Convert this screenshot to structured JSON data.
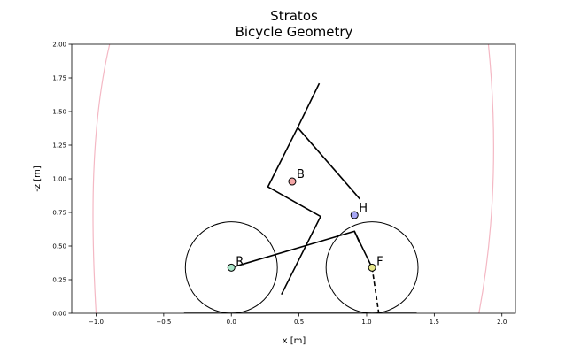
{
  "chart_data": {
    "type": "line",
    "title": "Stratos",
    "subtitle": "Bicycle Geometry",
    "xlabel": "x [m]",
    "ylabel": "-z [m]",
    "xlim": [
      -1.18,
      2.1
    ],
    "ylim": [
      0.0,
      2.0
    ],
    "grid": false,
    "x_ticks": [
      -1.0,
      -0.5,
      0.0,
      0.5,
      1.0,
      1.5,
      2.0
    ],
    "x_tick_labels": [
      "−1.0",
      "−0.5",
      "0.0",
      "0.5",
      "1.0",
      "1.5",
      "2.0"
    ],
    "y_ticks": [
      0.0,
      0.25,
      0.5,
      0.75,
      1.0,
      1.25,
      1.5,
      1.75,
      2.0
    ],
    "y_tick_labels": [
      "0.00",
      "0.25",
      "0.50",
      "0.75",
      "1.00",
      "1.25",
      "1.50",
      "1.75",
      "2.00"
    ],
    "ground_line": {
      "x": [
        -0.35,
        1.37
      ],
      "y": [
        0.0,
        0.0
      ]
    },
    "wheels": [
      {
        "label": "R",
        "center": [
          0.0,
          0.34
        ],
        "radius": 0.34,
        "marker_color": "#a8e6c8"
      },
      {
        "label": "F",
        "center": [
          1.04,
          0.34
        ],
        "radius": 0.34,
        "marker_color": "#e6e68a"
      }
    ],
    "mass_centers": [
      {
        "label": "B",
        "x": 0.45,
        "y": 0.98,
        "marker_color": "#f4a6a6"
      },
      {
        "label": "H",
        "x": 0.91,
        "y": 0.73,
        "marker_color": "#a6a6f4"
      }
    ],
    "frame": [
      {
        "name": "rear-frame",
        "x": [
          0.0,
          0.91,
          0.95
        ],
        "y": [
          0.34,
          0.61,
          0.52
        ]
      },
      {
        "name": "fork",
        "x": [
          0.91,
          1.04
        ],
        "y": [
          0.61,
          0.34
        ]
      },
      {
        "name": "rider-leg",
        "x": [
          0.37,
          0.66,
          0.27,
          0.49,
          0.65
        ],
        "y": [
          0.14,
          0.72,
          0.94,
          1.38,
          1.71
        ]
      },
      {
        "name": "rider-arm",
        "x": [
          0.49,
          0.95
        ],
        "y": [
          1.38,
          0.85
        ]
      }
    ],
    "steer_axis": {
      "x": [
        1.04,
        1.09
      ],
      "y": [
        0.34,
        0.0
      ],
      "style": "dashed"
    },
    "inertia_ellipses": [
      {
        "name": "pink-arc-left",
        "x": [
          -1.0,
          -1.04,
          -1.04,
          -0.9
        ],
        "y": [
          0.0,
          0.7,
          1.4,
          2.0
        ],
        "color": "#f4b8c4"
      },
      {
        "name": "pink-arc-right",
        "x": [
          1.83,
          1.96,
          1.96,
          1.9
        ],
        "y": [
          0.0,
          0.7,
          1.4,
          2.0
        ],
        "color": "#f4b8c4"
      }
    ]
  }
}
